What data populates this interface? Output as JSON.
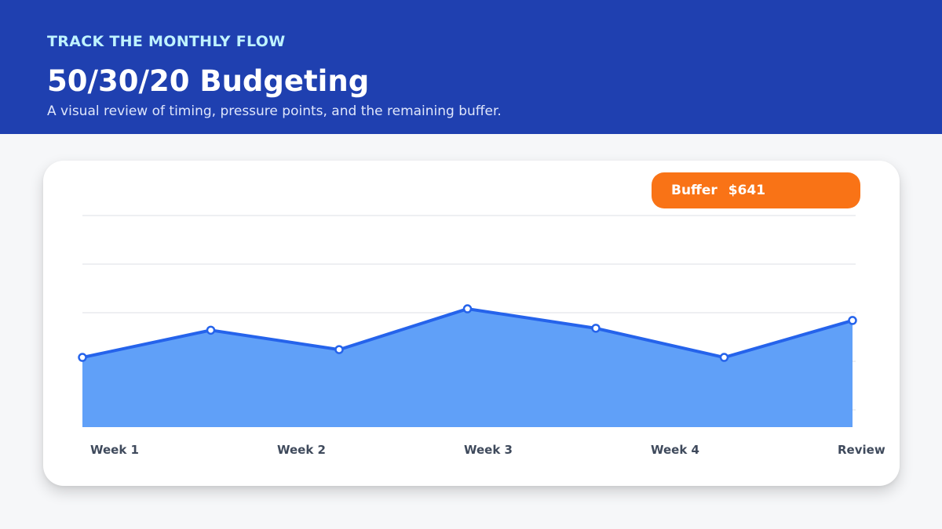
{
  "header": {
    "eyebrow": "TRACK THE MONTHLY FLOW",
    "title": "50/30/20 Budgeting",
    "subtitle": "A visual review of timing, pressure points, and the remaining buffer."
  },
  "badge": {
    "label": "Buffer",
    "value": "$641"
  },
  "colors": {
    "header_bg": "#1f40b0",
    "area_fill": "#60a0f8",
    "line": "#2563eb",
    "badge": "#f97316"
  },
  "chart_data": {
    "type": "area",
    "title": "",
    "xlabel": "",
    "ylabel": "",
    "ylim": [
      0,
      100
    ],
    "grid": true,
    "tick_labels": [
      "Week 1",
      "Week 2",
      "Week 3",
      "Week 4",
      "Review"
    ],
    "series": [
      {
        "values": [
          27,
          41,
          31,
          52,
          42,
          27,
          46
        ]
      }
    ]
  }
}
